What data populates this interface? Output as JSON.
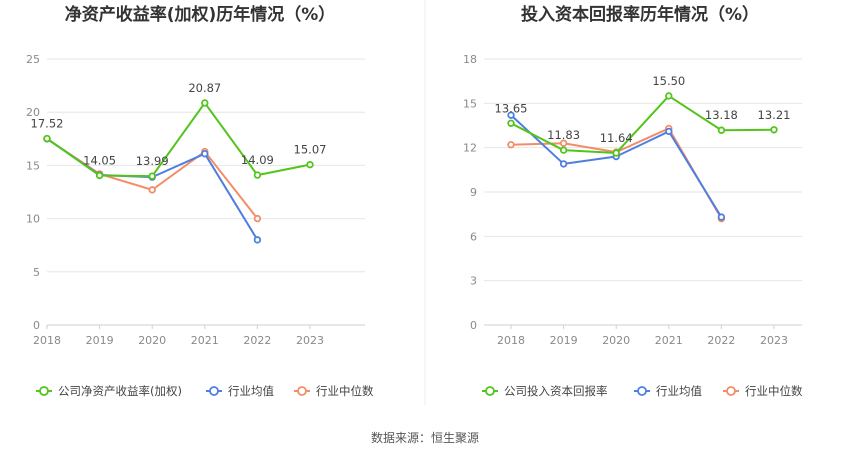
{
  "source": "数据来源：恒生聚源",
  "chart_data": [
    {
      "type": "line",
      "title": "净资产收益率(加权)历年情况（%）",
      "categories": [
        "2018",
        "2019",
        "2020",
        "2021",
        "2022",
        "2023"
      ],
      "ylim": [
        0,
        25
      ],
      "yticks": [
        0,
        5,
        10,
        15,
        20,
        25
      ],
      "grid": true,
      "legend_position": "bottom",
      "series": [
        {
          "name": "公司净资产收益率(加权)",
          "color": "#52c41a",
          "values": [
            17.52,
            14.05,
            13.99,
            20.87,
            14.09,
            15.07
          ],
          "labels": [
            "17.52",
            "14.05",
            "13.99",
            "20.87",
            "14.09",
            "15.07"
          ]
        },
        {
          "name": "行业均值",
          "color": "#4e7fe0",
          "values": [
            17.5,
            14.1,
            13.9,
            16.1,
            8.0,
            null
          ]
        },
        {
          "name": "行业中位数",
          "color": "#f28c69",
          "values": [
            17.5,
            14.2,
            12.7,
            16.3,
            10.0,
            null
          ]
        }
      ]
    },
    {
      "type": "line",
      "title": "投入资本回报率历年情况（%）",
      "categories": [
        "2018",
        "2019",
        "2020",
        "2021",
        "2022",
        "2023"
      ],
      "ylim": [
        0,
        18
      ],
      "yticks": [
        0,
        3,
        6,
        9,
        12,
        15,
        18
      ],
      "grid": true,
      "legend_position": "bottom",
      "series": [
        {
          "name": "公司投入资本回报率",
          "color": "#52c41a",
          "values": [
            13.65,
            11.83,
            11.64,
            15.5,
            13.18,
            13.21
          ],
          "labels": [
            "13.65",
            "11.83",
            "11.64",
            "15.50",
            "13.18",
            "13.21"
          ]
        },
        {
          "name": "行业均值",
          "color": "#4e7fe0",
          "values": [
            14.2,
            10.9,
            11.4,
            13.1,
            7.3,
            null
          ]
        },
        {
          "name": "行业中位数",
          "color": "#f28c69",
          "values": [
            12.2,
            12.3,
            11.7,
            13.3,
            7.2,
            null
          ]
        }
      ]
    }
  ]
}
